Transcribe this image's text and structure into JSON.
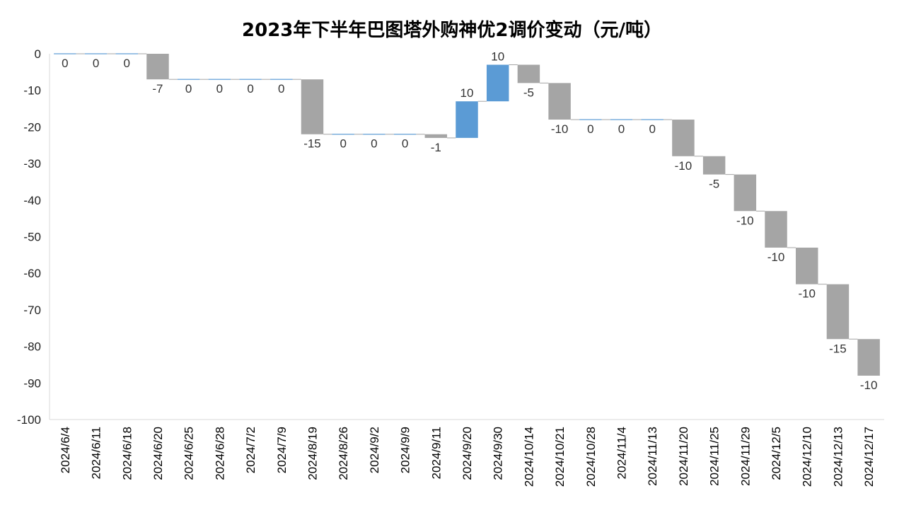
{
  "chart_data": {
    "type": "waterfall",
    "title": "2023年下半年巴图塔外购神优2调价变动（元/吨）",
    "xlabel": "",
    "ylabel": "",
    "ylim": [
      -100,
      0
    ],
    "yticks": [
      0,
      -10,
      -20,
      -30,
      -40,
      -50,
      -60,
      -70,
      -80,
      -90,
      -100
    ],
    "grid": false,
    "legend": "none",
    "categories": [
      "2024/6/4",
      "2024/6/11",
      "2024/6/18",
      "2024/6/20",
      "2024/6/25",
      "2024/6/28",
      "2024/7/2",
      "2024/7/9",
      "2024/8/19",
      "2024/8/26",
      "2024/9/2",
      "2024/9/9",
      "2024/9/11",
      "2024/9/20",
      "2024/9/30",
      "2024/10/14",
      "2024/10/21",
      "2024/10/28",
      "2024/11/4",
      "2024/11/13",
      "2024/11/20",
      "2024/11/25",
      "2024/11/29",
      "2024/12/5",
      "2024/12/10",
      "2024/12/13",
      "2024/12/17"
    ],
    "values": [
      0,
      0,
      0,
      -7,
      0,
      0,
      0,
      0,
      -15,
      0,
      0,
      0,
      -1,
      10,
      10,
      -5,
      -10,
      0,
      0,
      0,
      -10,
      -5,
      -10,
      -10,
      -10,
      -15,
      -10
    ],
    "data_labels": [
      "0",
      "0",
      "0",
      "-7",
      "0",
      "0",
      "0",
      "0",
      "-15",
      "0",
      "0",
      "0",
      "-1",
      "10",
      "10",
      "-5",
      "-10",
      "0",
      "0",
      "0",
      "-10",
      "-5",
      "-10",
      "-10",
      "-10",
      "-15",
      "-10"
    ],
    "colors": {
      "decrease": "#a5a5a5",
      "increase": "#5b9bd5",
      "zero": "#5b9bd5",
      "connector": "#a5a5a5",
      "axis": "#d9d9d9"
    }
  }
}
